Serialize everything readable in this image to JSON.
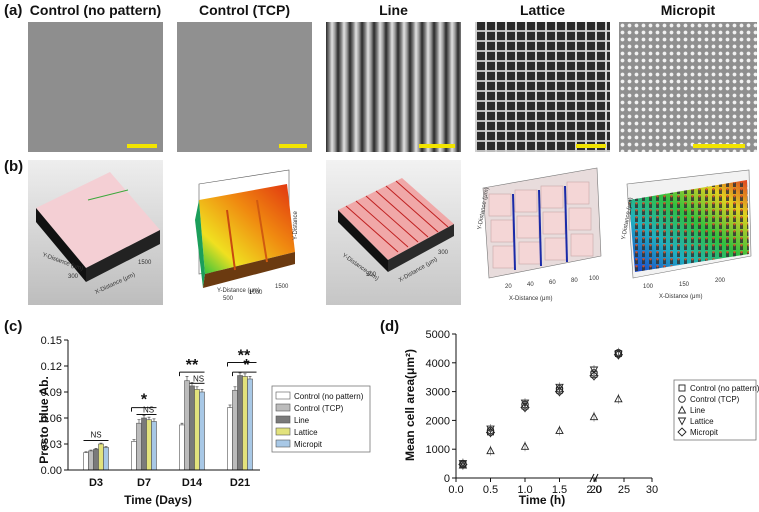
{
  "panels": {
    "a": "(a)",
    "b": "(b)",
    "c": "(c)",
    "d": "(d)"
  },
  "column_titles": [
    "Control (no pattern)",
    "Control (TCP)",
    "Line",
    "Lattice",
    "Micropit"
  ],
  "colors": {
    "scale_bar": "#f2e400",
    "sem_gray": "#8e8e8e"
  },
  "profile_axis_texts": [
    [
      "Y-Distance (μm)",
      "X-Distance (μm)",
      "300",
      "1500"
    ],
    [
      "Y-Distance",
      "1500",
      "1000",
      "500",
      "Y-Distance (μm)"
    ],
    [
      "Y-Distance (μm)",
      "X-Distance (μm)",
      "500",
      "300"
    ],
    [
      "Y-Distance (μm)",
      "X-Distance (μm)",
      "20",
      "40",
      "60",
      "80",
      "100"
    ],
    [
      "Y-Distance (μm)",
      "X-Distance (μm)",
      "100",
      "150",
      "200"
    ]
  ],
  "chart_data": [
    {
      "type": "bar",
      "title": "",
      "xlabel": "Time (Days)",
      "ylabel": "Presto blue Ab.",
      "ylim": [
        0,
        0.15
      ],
      "yticks": [
        "0.00",
        "0.03",
        "0.06",
        "0.09",
        "0.12",
        "0.15"
      ],
      "categories": [
        "D3",
        "D7",
        "D14",
        "D21"
      ],
      "series": [
        {
          "name": "Control (no pattern)",
          "color": "#ffffff",
          "values": [
            0.02,
            0.033,
            0.052,
            0.072
          ],
          "errors": [
            0.001,
            0.002,
            0.002,
            0.003
          ]
        },
        {
          "name": "Control (TCP)",
          "color": "#bcbcbc",
          "values": [
            0.022,
            0.054,
            0.103,
            0.092
          ],
          "errors": [
            0.001,
            0.004,
            0.005,
            0.004
          ]
        },
        {
          "name": "Line",
          "color": "#7a7a7a",
          "values": [
            0.024,
            0.06,
            0.097,
            0.109
          ],
          "errors": [
            0.001,
            0.003,
            0.004,
            0.003
          ]
        },
        {
          "name": "Lattice",
          "color": "#e2e27c",
          "values": [
            0.03,
            0.058,
            0.093,
            0.108
          ],
          "errors": [
            0.001,
            0.003,
            0.003,
            0.003
          ]
        },
        {
          "name": "Micropit",
          "color": "#a8c8e6",
          "values": [
            0.026,
            0.056,
            0.09,
            0.105
          ],
          "errors": [
            0.001,
            0.003,
            0.003,
            0.003
          ]
        }
      ],
      "annotations": [
        {
          "group": "D3",
          "text": "NS"
        },
        {
          "group": "D7",
          "text": "*"
        },
        {
          "group": "D7",
          "text": "NS"
        },
        {
          "group": "D14",
          "text": "**"
        },
        {
          "group": "D14",
          "text": "NS"
        },
        {
          "group": "D21",
          "text": "**"
        },
        {
          "group": "D21",
          "text": "*"
        }
      ]
    },
    {
      "type": "scatter",
      "title": "",
      "xlabel": "Time (h)",
      "ylabel": "Mean cell area(μm²)",
      "ylim": [
        0,
        5000
      ],
      "yticks": [
        "0",
        "1000",
        "2000",
        "3000",
        "4000",
        "5000"
      ],
      "xticks": [
        "0.0",
        "0.5",
        "1.0",
        "1.5",
        "2.0",
        "20",
        "25",
        "30"
      ],
      "axis_break": "between 2.0 and 20",
      "series": [
        {
          "name": "Control (no pattern)",
          "marker": "square",
          "x": [
            0.1,
            0.5,
            1.0,
            1.5,
            2.0,
            24
          ],
          "y": [
            480,
            1600,
            2500,
            3050,
            3600,
            4320
          ]
        },
        {
          "name": "Control (TCP)",
          "marker": "circle",
          "x": [
            0.1,
            0.5,
            1.0,
            1.5,
            2.0,
            24
          ],
          "y": [
            500,
            1650,
            2550,
            3100,
            3650,
            4350
          ]
        },
        {
          "name": "Line",
          "marker": "triangle-up",
          "x": [
            0.1,
            0.5,
            1.0,
            1.5,
            2.0,
            24
          ],
          "y": [
            450,
            950,
            1100,
            1650,
            2130,
            2750
          ]
        },
        {
          "name": "Lattice",
          "marker": "triangle-down",
          "x": [
            0.1,
            0.5,
            1.0,
            1.5,
            2.0,
            24
          ],
          "y": [
            500,
            1700,
            2600,
            3150,
            3750,
            4300
          ]
        },
        {
          "name": "Micropit",
          "marker": "diamond",
          "x": [
            0.1,
            0.5,
            1.0,
            1.5,
            2.0,
            24
          ],
          "y": [
            470,
            1580,
            2450,
            3000,
            3550,
            4280
          ]
        }
      ]
    }
  ]
}
